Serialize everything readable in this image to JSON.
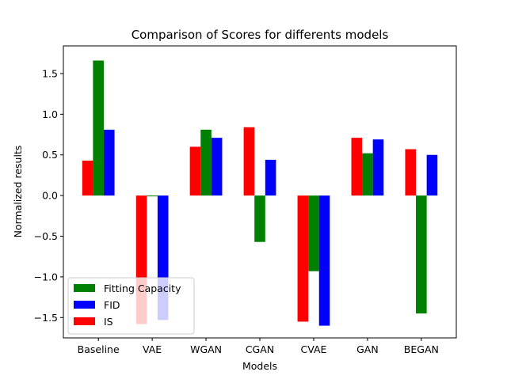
{
  "chart_data": {
    "type": "bar",
    "title": "Comparison of Scores for differents models",
    "xlabel": "Models",
    "ylabel": "Normalized results",
    "categories": [
      "Baseline",
      "VAE",
      "WGAN",
      "CGAN",
      "CVAE",
      "GAN",
      "BEGAN"
    ],
    "ylim": [
      -1.75,
      1.84
    ],
    "yticks": [
      -1.5,
      -1.0,
      -0.5,
      0.0,
      0.5,
      1.0,
      1.5
    ],
    "ytick_labels": [
      "−1.5",
      "−1.0",
      "−0.5",
      "0.0",
      "0.5",
      "1.0",
      "1.5"
    ],
    "grid": false,
    "legend_position": "lower-left",
    "series": [
      {
        "name": "IS",
        "color": "#ff0000",
        "values": [
          0.43,
          -1.58,
          0.6,
          0.84,
          -1.55,
          0.71,
          0.57
        ]
      },
      {
        "name": "Fitting Capacity",
        "color": "#008000",
        "values": [
          1.66,
          -0.01,
          0.81,
          -0.57,
          -0.93,
          0.52,
          -1.45
        ]
      },
      {
        "name": "FID",
        "color": "#0000ff",
        "values": [
          0.81,
          -1.53,
          0.71,
          0.44,
          -1.6,
          0.69,
          0.5
        ]
      }
    ],
    "legend_order": [
      "Fitting Capacity",
      "FID",
      "IS"
    ]
  }
}
